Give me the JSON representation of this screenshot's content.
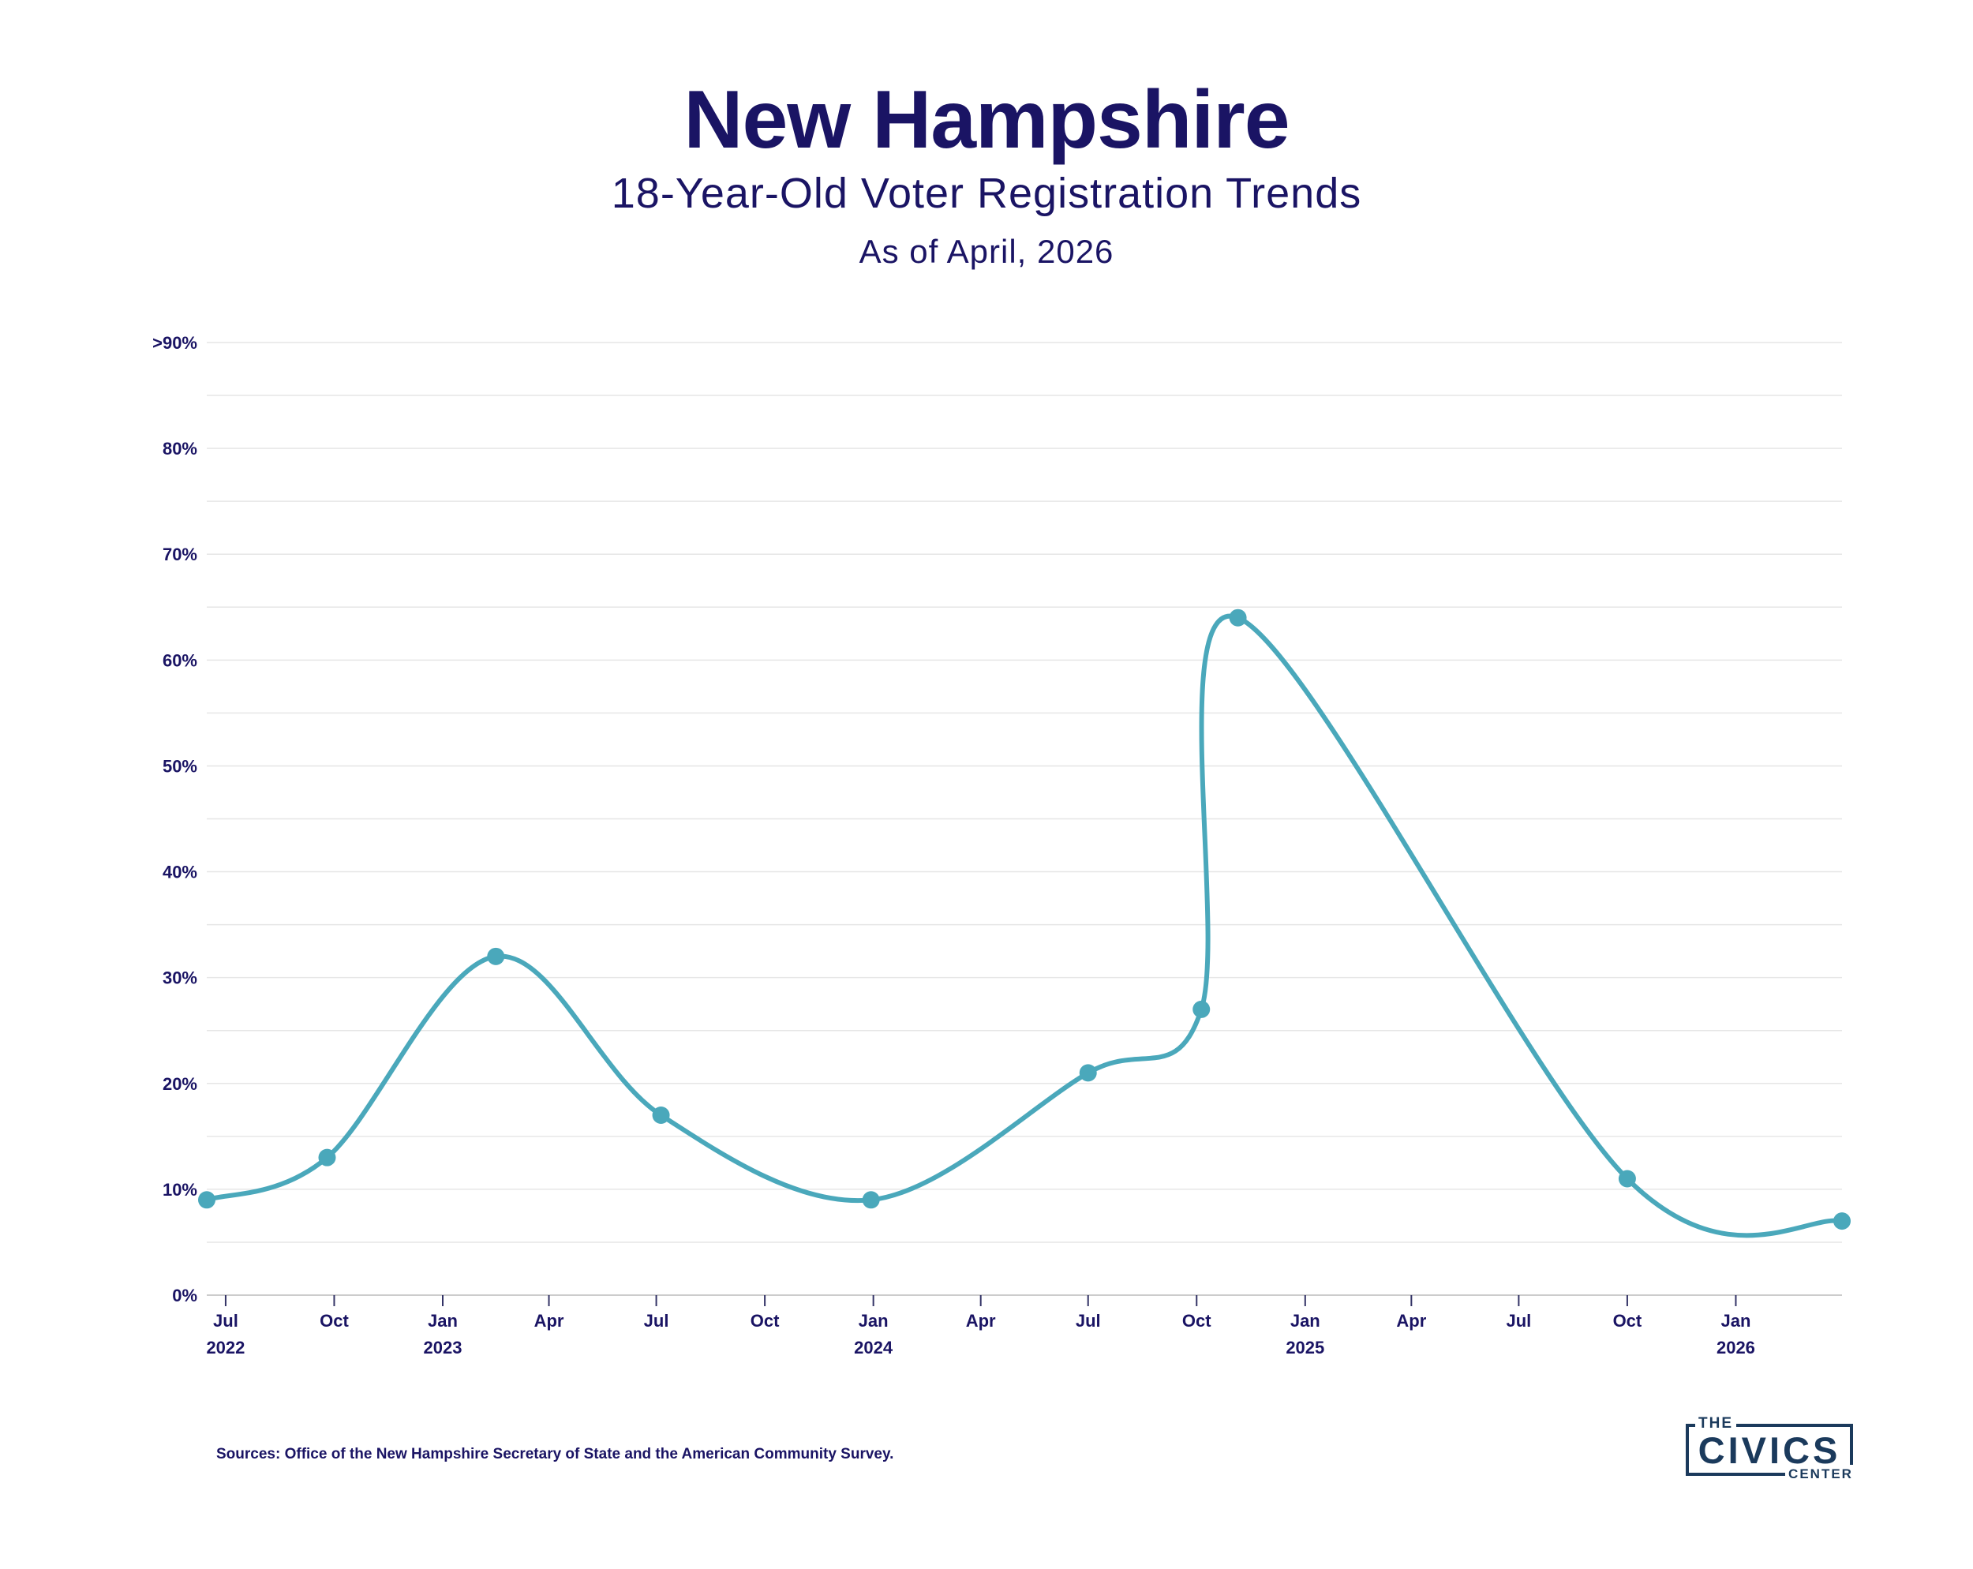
{
  "header": {
    "title": "New Hampshire",
    "subtitle": "18-Year-Old Voter Registration Trends",
    "as_of": "As of April, 2026"
  },
  "footer": {
    "source": "Sources: Office of the New Hampshire Secretary of State and the American Community Survey."
  },
  "logo": {
    "the": "THE",
    "civics": "CIVICS",
    "center": "CENTER"
  },
  "colors": {
    "line": "#4aa8bb",
    "text": "#1a1464",
    "grid": "#e6e6e6",
    "axis": "#cccccc",
    "logo": "#1b3a5c"
  },
  "chart_data": {
    "type": "line",
    "title": "New Hampshire",
    "subtitle": "18-Year-Old Voter Registration Trends",
    "xlabel": "",
    "ylabel": "",
    "x_domain": [
      "2022-06-15",
      "2026-04-01"
    ],
    "ylim": [
      0,
      90
    ],
    "grid": true,
    "legend": "none",
    "y_ticks": [
      {
        "value": 0,
        "label": "0%"
      },
      {
        "value": 10,
        "label": "10%"
      },
      {
        "value": 20,
        "label": "20%"
      },
      {
        "value": 30,
        "label": "30%"
      },
      {
        "value": 40,
        "label": "40%"
      },
      {
        "value": 50,
        "label": "50%"
      },
      {
        "value": 60,
        "label": "60%"
      },
      {
        "value": 70,
        "label": "70%"
      },
      {
        "value": 80,
        "label": "80%"
      },
      {
        "value": 90,
        "label": ">90%"
      }
    ],
    "x_ticks": [
      {
        "date": "2022-07-01",
        "label": "Jul",
        "year": "2022"
      },
      {
        "date": "2022-10-01",
        "label": "Oct",
        "year": ""
      },
      {
        "date": "2023-01-01",
        "label": "Jan",
        "year": "2023"
      },
      {
        "date": "2023-04-01",
        "label": "Apr",
        "year": ""
      },
      {
        "date": "2023-07-01",
        "label": "Jul",
        "year": ""
      },
      {
        "date": "2023-10-01",
        "label": "Oct",
        "year": ""
      },
      {
        "date": "2024-01-01",
        "label": "Jan",
        "year": "2024"
      },
      {
        "date": "2024-04-01",
        "label": "Apr",
        "year": ""
      },
      {
        "date": "2024-07-01",
        "label": "Jul",
        "year": ""
      },
      {
        "date": "2024-10-01",
        "label": "Oct",
        "year": ""
      },
      {
        "date": "2025-01-01",
        "label": "Jan",
        "year": "2025"
      },
      {
        "date": "2025-04-01",
        "label": "Apr",
        "year": ""
      },
      {
        "date": "2025-07-01",
        "label": "Jul",
        "year": ""
      },
      {
        "date": "2025-10-01",
        "label": "Oct",
        "year": ""
      },
      {
        "date": "2026-01-01",
        "label": "Jan",
        "year": "2026"
      }
    ],
    "series": [
      {
        "points": [
          {
            "x": "2022-06-15",
            "y": 9
          },
          {
            "x": "2022-09-25",
            "y": 13
          },
          {
            "x": "2023-02-15",
            "y": 32
          },
          {
            "x": "2023-07-05",
            "y": 17
          },
          {
            "x": "2023-12-30",
            "y": 9
          },
          {
            "x": "2024-07-01",
            "y": 21
          },
          {
            "x": "2024-10-05",
            "y": 27
          },
          {
            "x": "2024-11-05",
            "y": 64
          },
          {
            "x": "2025-10-01",
            "y": 11
          },
          {
            "x": "2026-04-01",
            "y": 7
          }
        ]
      }
    ]
  }
}
